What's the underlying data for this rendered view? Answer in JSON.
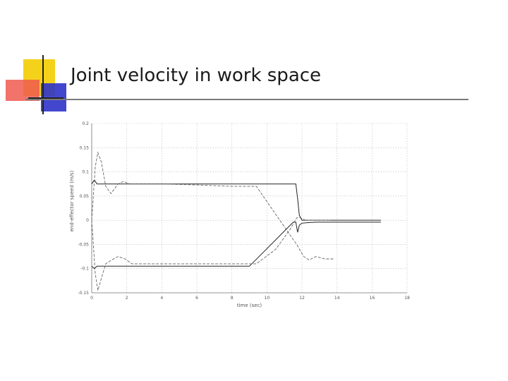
{
  "slide": {
    "title": "Joint velocity in work space"
  },
  "colors": {
    "accent_yellow": "#f4d21a",
    "accent_red": "#ef5a4f",
    "accent_blue": "#2e33c9",
    "rule": "#7a7a7a"
  },
  "chart_data": {
    "type": "line",
    "title": "",
    "xlabel": "time (sec)",
    "ylabel": "end-effector speed (m/s)",
    "xlim": [
      0,
      18
    ],
    "ylim": [
      -0.15,
      0.2
    ],
    "grid": true,
    "x_ticks": [
      0,
      2,
      4,
      6,
      8,
      10,
      12,
      14,
      16,
      18
    ],
    "x_tick_labels": [
      "0",
      "2",
      "4",
      "6",
      "8",
      "10",
      "12",
      "14",
      "16",
      "18"
    ],
    "y_ticks": [
      0.2,
      0.15,
      0.1,
      0.05,
      0,
      -0.05,
      -0.1,
      -0.15
    ],
    "y_tick_labels": [
      "0.2",
      "0.15",
      "0.1",
      "0.05",
      "0",
      "-0.05",
      "-0.1",
      "-0.15"
    ],
    "series": [
      {
        "style": "solid",
        "x": [
          0,
          0.15,
          0.3,
          0.5,
          1,
          2,
          4,
          6,
          8,
          9,
          9.4,
          11.5,
          11.65,
          11.75,
          11.85,
          12,
          12.3,
          12.8,
          13,
          16.5
        ],
        "y": [
          0.075,
          0.083,
          0.075,
          0.075,
          0.075,
          0.075,
          0.075,
          0.075,
          0.075,
          0.075,
          0.075,
          0.075,
          0.075,
          0.045,
          0.01,
          0.0,
          0.0,
          0.0,
          0.0,
          0.0
        ]
      },
      {
        "style": "dashed",
        "x": [
          0,
          0.2,
          0.35,
          0.55,
          0.8,
          1.1,
          1.5,
          1.8,
          2.2,
          4,
          6,
          8,
          9,
          9.4,
          11.5,
          11.7,
          12.1,
          12.4,
          12.8,
          13.3,
          13.8
        ],
        "y": [
          0.0,
          0.11,
          0.14,
          0.12,
          0.07,
          0.055,
          0.075,
          0.08,
          0.075,
          0.075,
          0.073,
          0.07,
          0.07,
          0.07,
          -0.04,
          -0.05,
          -0.075,
          -0.082,
          -0.075,
          -0.08,
          -0.08
        ]
      },
      {
        "style": "solid",
        "x": [
          0,
          0.15,
          0.3,
          0.5,
          1,
          4,
          6,
          8,
          9,
          11.5,
          11.65,
          11.75,
          11.85,
          12,
          12.3,
          12.8,
          14,
          16.5
        ],
        "y": [
          -0.095,
          -0.1,
          -0.095,
          -0.095,
          -0.095,
          -0.095,
          -0.095,
          -0.095,
          -0.095,
          -0.004,
          -0.004,
          -0.025,
          -0.01,
          -0.006,
          -0.005,
          -0.004,
          -0.004,
          -0.004
        ]
      },
      {
        "style": "dashed",
        "x": [
          0,
          0.2,
          0.35,
          0.55,
          0.8,
          1.1,
          1.5,
          1.9,
          2.3,
          4,
          6,
          8,
          9,
          9.4,
          10.5,
          11.3,
          11.55,
          11.7,
          11.9,
          12.2,
          12.6,
          13.0,
          13.6
        ],
        "y": [
          0.0,
          -0.11,
          -0.145,
          -0.12,
          -0.09,
          -0.083,
          -0.075,
          -0.08,
          -0.09,
          -0.09,
          -0.09,
          -0.09,
          -0.09,
          -0.09,
          -0.06,
          -0.02,
          -0.005,
          0.005,
          0.005,
          0.0,
          0.0,
          0.0,
          0.0
        ]
      }
    ]
  }
}
